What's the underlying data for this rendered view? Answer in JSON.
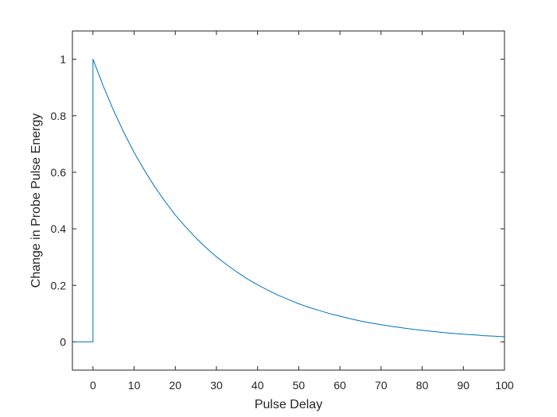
{
  "chart_data": {
    "type": "line",
    "title": "",
    "xlabel": "Pulse Delay",
    "ylabel": "Change in Probe Pulse Energy",
    "xlim": [
      -5,
      100
    ],
    "ylim": [
      -0.1,
      1.1
    ],
    "xticks": [
      0,
      10,
      20,
      30,
      40,
      50,
      60,
      70,
      80,
      90,
      100
    ],
    "xtick_labels": [
      "0",
      "10",
      "20",
      "30",
      "40",
      "50",
      "60",
      "70",
      "80",
      "90",
      "100"
    ],
    "yticks": [
      0,
      0.2,
      0.4,
      0.6,
      0.8,
      1
    ],
    "ytick_labels": [
      "0",
      "0.2",
      "0.4",
      "0.6",
      "0.8",
      "1"
    ],
    "grid": false,
    "legend": "none",
    "box": true,
    "series": [
      {
        "color": "#0072BD",
        "x": [
          -5,
          0,
          0,
          2.5,
          5,
          7.5,
          10,
          12.5,
          15,
          17.5,
          20,
          22.5,
          25,
          27.5,
          30,
          32.5,
          35,
          37.5,
          40,
          42.5,
          45,
          47.5,
          50,
          52.5,
          55,
          57.5,
          60,
          62.5,
          65,
          67.5,
          70,
          72.5,
          75,
          77.5,
          80,
          82.5,
          85,
          87.5,
          90,
          92.5,
          95,
          97.5,
          100
        ],
        "y": [
          0,
          0,
          1,
          0.905,
          0.819,
          0.741,
          0.67,
          0.607,
          0.549,
          0.497,
          0.449,
          0.407,
          0.368,
          0.333,
          0.301,
          0.273,
          0.247,
          0.223,
          0.202,
          0.183,
          0.165,
          0.15,
          0.135,
          0.122,
          0.111,
          0.1,
          0.091,
          0.082,
          0.074,
          0.067,
          0.061,
          0.055,
          0.05,
          0.045,
          0.041,
          0.037,
          0.033,
          0.03,
          0.027,
          0.025,
          0.022,
          0.02,
          0.018
        ]
      }
    ]
  }
}
